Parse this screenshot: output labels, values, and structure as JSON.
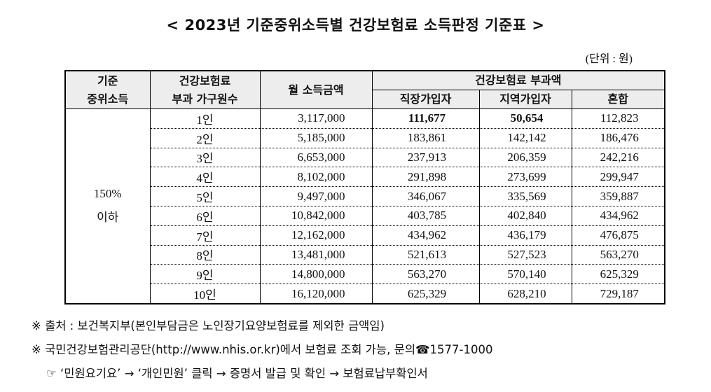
{
  "title": "< 2023년 기준중위소득별 건강보험료 소득판정 기준표 >",
  "unit": "(단위 : 원)",
  "table": {
    "header": {
      "criterion": [
        "기준",
        "중위소득"
      ],
      "household": [
        "건강보험료",
        "부과 가구원수"
      ],
      "income": "월 소득금액",
      "premium": "건강보험료 부과액",
      "types": [
        "직장가입자",
        "지역가입자",
        "혼합"
      ]
    },
    "group": [
      "150%",
      "이하"
    ],
    "rows": [
      [
        "1인",
        "3,117,000",
        "111,677",
        "50,654",
        "112,823"
      ],
      [
        "2인",
        "5,185,000",
        "183,861",
        "142,142",
        "186,476"
      ],
      [
        "3인",
        "6,653,000",
        "237,913",
        "206,359",
        "242,216"
      ],
      [
        "4인",
        "8,102,000",
        "291,898",
        "273,699",
        "299,947"
      ],
      [
        "5인",
        "9,497,000",
        "346,067",
        "335,569",
        "359,887"
      ],
      [
        "6인",
        "10,842,000",
        "403,785",
        "402,840",
        "434,962"
      ],
      [
        "7인",
        "12,162,000",
        "434,962",
        "436,179",
        "476,875"
      ],
      [
        "8인",
        "13,481,000",
        "521,613",
        "527,523",
        "563,270"
      ],
      [
        "9인",
        "14,800,000",
        "563,270",
        "570,140",
        "625,329"
      ],
      [
        "10인",
        "16,120,000",
        "625,329",
        "628,210",
        "729,187"
      ]
    ]
  },
  "notes": [
    "※ 출처 : 보건복지부(본인부담금은 노인장기요양보험료를 제외한 금액임)",
    "※ 국민건강보험관리공단(http://www.nhis.or.kr)에서 보험료 조회 가능, 문의☎1577-1000",
    "☞ ‘민원요기요’ → ‘개인민원’ 클릭 → 증명서 발급 및 확인 → 보험료납부확인서"
  ]
}
